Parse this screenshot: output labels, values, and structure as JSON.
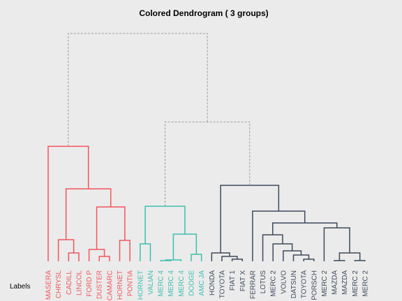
{
  "chart_data": {
    "type": "dendrogram",
    "title": "Colored Dendrogram ( 3  groups)",
    "axis_label": "Labels",
    "group_colors": [
      "#f2555c",
      "#3cbfae",
      "#3e4a5b"
    ],
    "link_color": "#9a9a9a",
    "ylim": [
      0,
      327
    ],
    "leaves": [
      {
        "label": "MASERA",
        "group": 0
      },
      {
        "label": "CHRYSL",
        "group": 0
      },
      {
        "label": "CADILL",
        "group": 0
      },
      {
        "label": "LINCOL",
        "group": 0
      },
      {
        "label": "FORD P",
        "group": 0
      },
      {
        "label": "DUSTER",
        "group": 0
      },
      {
        "label": "CAMARC",
        "group": 0
      },
      {
        "label": "HORNET",
        "group": 0
      },
      {
        "label": "PONTIA",
        "group": 0
      },
      {
        "label": "HORNET",
        "group": 1
      },
      {
        "label": "VALIAN",
        "group": 1
      },
      {
        "label": "MERC 4",
        "group": 1
      },
      {
        "label": "MERC 4",
        "group": 1
      },
      {
        "label": "MERC 4",
        "group": 1
      },
      {
        "label": "DODGE",
        "group": 1
      },
      {
        "label": "AMC JA",
        "group": 1
      },
      {
        "label": "HONDA",
        "group": 2
      },
      {
        "label": "TOYOTA",
        "group": 2
      },
      {
        "label": "FIAT 1",
        "group": 2
      },
      {
        "label": "FIAT X",
        "group": 2
      },
      {
        "label": "FERRAR",
        "group": 2
      },
      {
        "label": "LOTUS",
        "group": 2
      },
      {
        "label": "MERC 2",
        "group": 2
      },
      {
        "label": "VOLVO",
        "group": 2
      },
      {
        "label": "DATSUN",
        "group": 2
      },
      {
        "label": "TOYOTA",
        "group": 2
      },
      {
        "label": "PORSCH",
        "group": 2
      },
      {
        "label": "MERC 2",
        "group": 2
      },
      {
        "label": "MAZDA",
        "group": 2
      },
      {
        "label": "MAZDA",
        "group": 2
      },
      {
        "label": "MERC 2",
        "group": 2
      },
      {
        "label": "MERC 2",
        "group": 2
      }
    ],
    "merges": [
      [
        2,
        3,
        12
      ],
      [
        1,
        32,
        31
      ],
      [
        5,
        6,
        7
      ],
      [
        4,
        34,
        17
      ],
      [
        7,
        8,
        30
      ],
      [
        35,
        36,
        78
      ],
      [
        33,
        37,
        104
      ],
      [
        0,
        38,
        165
      ],
      [
        9,
        10,
        25
      ],
      [
        11,
        12,
        1
      ],
      [
        41,
        13,
        2
      ],
      [
        14,
        15,
        10
      ],
      [
        42,
        43,
        39
      ],
      [
        40,
        44,
        79
      ],
      [
        18,
        19,
        3
      ],
      [
        17,
        46,
        7
      ],
      [
        16,
        47,
        12
      ],
      [
        25,
        26,
        3
      ],
      [
        24,
        49,
        9
      ],
      [
        23,
        50,
        15
      ],
      [
        22,
        51,
        25
      ],
      [
        21,
        52,
        38
      ],
      [
        28,
        29,
        1
      ],
      [
        30,
        31,
        1
      ],
      [
        54,
        55,
        12
      ],
      [
        27,
        56,
        48
      ],
      [
        53,
        57,
        55
      ],
      [
        20,
        58,
        72
      ],
      [
        48,
        59,
        109
      ],
      [
        45,
        60,
        200
      ],
      [
        39,
        61,
        327
      ]
    ]
  }
}
